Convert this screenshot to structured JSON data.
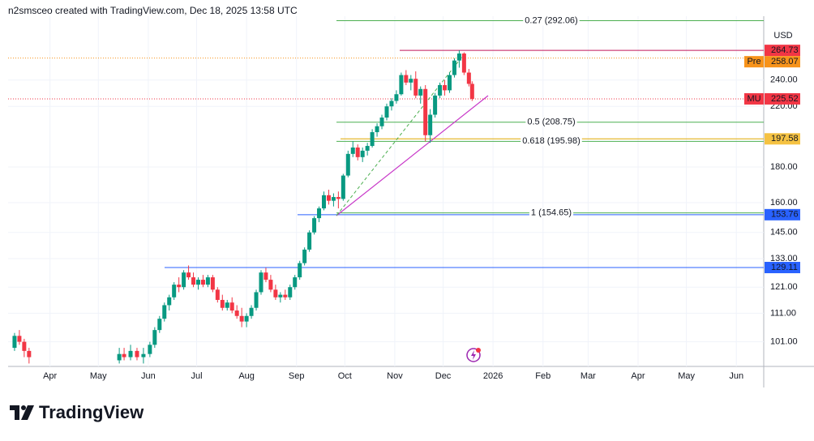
{
  "header": {
    "text": "n2smsceo created with TradingView.com, Dec 18, 2025 13:58 UTC"
  },
  "footer": {
    "logo": "TradingView"
  },
  "chart_data": {
    "type": "candlestick",
    "currency": "USD",
    "log_scale": true,
    "grid": true,
    "ylim": [
      93.1,
      296.4
    ],
    "yticks": [
      {
        "value": 240,
        "label": "240.00"
      },
      {
        "value": 220,
        "label": "220.00"
      },
      {
        "value": 180,
        "label": "180.00"
      },
      {
        "value": 160,
        "label": "160.00"
      },
      {
        "value": 145,
        "label": "145.00"
      },
      {
        "value": 133,
        "label": "133.00"
      },
      {
        "value": 121,
        "label": "121.00"
      },
      {
        "value": 111,
        "label": "111.00"
      },
      {
        "value": 101,
        "label": "101.00"
      }
    ],
    "xlim": [
      -26,
      443
    ],
    "xticks": [
      {
        "value": 0,
        "label": "Apr"
      },
      {
        "value": 30,
        "label": "May"
      },
      {
        "value": 61,
        "label": "Jun"
      },
      {
        "value": 91,
        "label": "Jul"
      },
      {
        "value": 122,
        "label": "Aug"
      },
      {
        "value": 153,
        "label": "Sep"
      },
      {
        "value": 183,
        "label": "Oct"
      },
      {
        "value": 214,
        "label": "Nov"
      },
      {
        "value": 244,
        "label": "Dec"
      },
      {
        "value": 275,
        "label": "2026"
      },
      {
        "value": 306,
        "label": "Feb"
      },
      {
        "value": 334,
        "label": "Mar"
      },
      {
        "value": 365,
        "label": "Apr"
      },
      {
        "value": 395,
        "label": "May"
      },
      {
        "value": 426,
        "label": "Jun"
      }
    ],
    "up_color": "#089981",
    "down_color": "#f23645",
    "x": [
      -22,
      -19,
      -16,
      -13,
      43,
      46,
      50,
      54,
      58,
      62,
      65,
      68,
      71,
      74,
      77,
      80,
      83,
      86,
      89,
      92,
      95,
      98,
      101,
      104,
      107,
      110,
      113,
      116,
      119,
      122,
      125,
      128,
      131,
      134,
      137,
      140,
      143,
      146,
      149,
      152,
      155,
      158,
      161,
      164,
      167,
      170,
      173,
      176,
      179,
      182,
      185,
      188,
      191,
      194,
      197,
      200,
      203,
      206,
      209,
      212,
      215,
      218,
      221,
      224,
      227,
      230,
      233,
      236,
      239,
      242,
      245,
      248,
      251,
      254,
      257,
      260,
      262
    ],
    "open": [
      99,
      103,
      101,
      98,
      95,
      97,
      96,
      98,
      96,
      97,
      100,
      105,
      109,
      114,
      117,
      122,
      121,
      127,
      125,
      122,
      124,
      122,
      125,
      120,
      116,
      113,
      115,
      112,
      110,
      108,
      110,
      113,
      119,
      127,
      124,
      120,
      117,
      118,
      117,
      121,
      125,
      131,
      137,
      145,
      152,
      157,
      164,
      161,
      163,
      162,
      175,
      188,
      192,
      186,
      190,
      193,
      202,
      206,
      212,
      220,
      224,
      229,
      244,
      238,
      241,
      228,
      233,
      200,
      214,
      228,
      236,
      232,
      244,
      256,
      262,
      246,
      237
    ],
    "high": [
      104,
      105,
      102,
      99,
      99,
      99,
      100,
      99,
      99,
      101,
      106,
      110,
      115,
      118,
      123,
      125,
      128,
      130,
      127,
      125,
      126,
      126,
      126,
      121,
      118,
      116,
      117,
      114,
      113,
      111,
      114,
      120,
      128,
      129,
      126,
      122,
      119,
      120,
      122,
      126,
      132,
      138,
      146,
      153,
      158,
      166,
      167,
      165,
      166,
      176,
      190,
      196,
      194,
      192,
      195,
      204,
      208,
      214,
      222,
      226,
      232,
      246,
      248,
      244,
      247,
      235,
      236,
      218,
      230,
      238,
      240,
      246,
      258,
      264.73,
      263,
      249,
      239
    ],
    "low": [
      98,
      100,
      96,
      94,
      94,
      95,
      95,
      95,
      94,
      96,
      99,
      104,
      108,
      112,
      116,
      119,
      120,
      124,
      121,
      120,
      121,
      121,
      119,
      115,
      112,
      112,
      111,
      109,
      106,
      106,
      109,
      112,
      118,
      123,
      119,
      116,
      115,
      116,
      116,
      120,
      124,
      130,
      136,
      144,
      150,
      156,
      159,
      158,
      157,
      161,
      174,
      186,
      184,
      183,
      187,
      192,
      199,
      204,
      210,
      217,
      222,
      228,
      236,
      232,
      226,
      222,
      196,
      195,
      212,
      226,
      228,
      230,
      242,
      250,
      244,
      235,
      224
    ],
    "close": [
      103,
      101,
      98,
      96,
      97,
      96,
      98,
      96,
      97,
      100,
      105,
      109,
      114,
      117,
      122,
      121,
      127,
      125,
      122,
      124,
      122,
      125,
      120,
      116,
      113,
      115,
      112,
      110,
      108,
      110,
      113,
      119,
      127,
      124,
      120,
      117,
      118,
      117,
      121,
      125,
      131,
      137,
      145,
      152,
      157,
      164,
      161,
      163,
      162,
      175,
      188,
      192,
      186,
      190,
      193,
      202,
      206,
      212,
      220,
      224,
      229,
      244,
      238,
      241,
      228,
      233,
      200,
      214,
      228,
      236,
      232,
      244,
      256,
      262,
      246,
      237,
      225.52
    ],
    "price_lines": [
      {
        "value": 264.73,
        "color": "#f23645",
        "line_color": "#c2185b",
        "style": "solid"
      },
      {
        "tag": "Pre",
        "value": 258.07,
        "color": "#f7931a",
        "line_color": "#f7931a",
        "style": "dotted"
      },
      {
        "tag": "MU",
        "value": 225.52,
        "color": "#f23645",
        "line_color": "#f23645",
        "style": "dotted"
      },
      {
        "value": 197.58,
        "color": "#f5c242",
        "line_color": "#e0a800",
        "style": "solid"
      },
      {
        "value": 153.76,
        "color": "#2962ff",
        "line_color": "#2962ff",
        "style": "solid"
      },
      {
        "value": 129.11,
        "color": "#2962ff",
        "line_color": "#2962ff",
        "style": "solid"
      }
    ],
    "fib_color": "#4caf50",
    "fib_levels": [
      {
        "label": "0.27 (292.06)",
        "value": 292.06
      },
      {
        "label": "0.5 (208.75)",
        "value": 208.75
      },
      {
        "label": "0.618 (195.98)",
        "value": 195.98
      },
      {
        "label": "1 (154.65)",
        "value": 154.65
      }
    ]
  }
}
